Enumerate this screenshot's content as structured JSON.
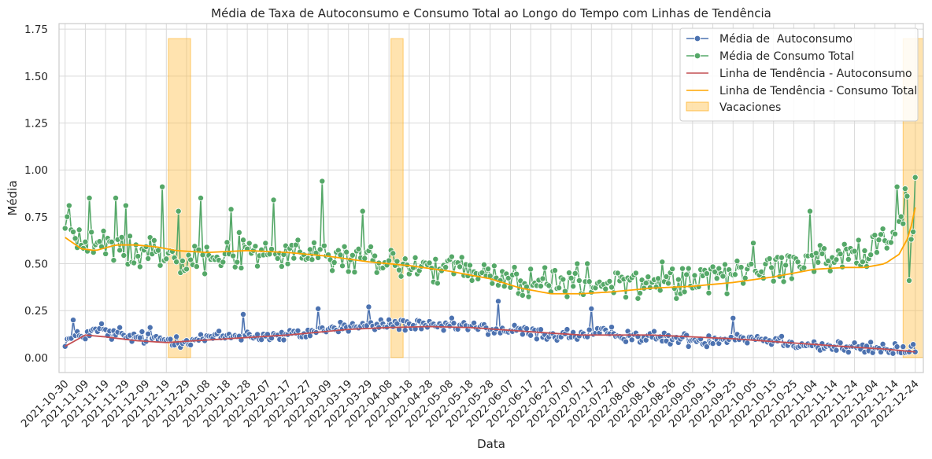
{
  "chart_data": {
    "type": "line",
    "title": "Média de Taxa de Autoconsumo e Consumo Total ao Longo do Tempo com Linhas de Tendência",
    "xlabel": "Data",
    "ylabel": "Média",
    "x_range": [
      "2021-10-27",
      "2022-12-28"
    ],
    "ylim": [
      -0.08,
      1.78
    ],
    "y_ticks": [
      0.0,
      0.25,
      0.5,
      0.75,
      1.0,
      1.25,
      1.5,
      1.75
    ],
    "y_tick_labels": [
      "0.00",
      "0.25",
      "0.50",
      "0.75",
      "1.00",
      "1.25",
      "1.50",
      "1.75"
    ],
    "x_tick_labels": [
      "2021-10-30",
      "2021-11-09",
      "2021-11-19",
      "2021-11-29",
      "2021-12-09",
      "2021-12-19",
      "2021-12-29",
      "2022-01-08",
      "2022-01-18",
      "2022-01-28",
      "2022-02-07",
      "2022-02-17",
      "2022-02-27",
      "2022-03-09",
      "2022-03-19",
      "2022-03-29",
      "2022-04-08",
      "2022-04-18",
      "2022-04-28",
      "2022-05-08",
      "2022-05-18",
      "2022-05-28",
      "2022-06-07",
      "2022-06-17",
      "2022-06-27",
      "2022-07-07",
      "2022-07-17",
      "2022-07-27",
      "2022-08-06",
      "2022-08-16",
      "2022-08-26",
      "2022-09-05",
      "2022-09-15",
      "2022-09-25",
      "2022-10-05",
      "2022-10-15",
      "2022-10-25",
      "2022-11-04",
      "2022-11-14",
      "2022-11-24",
      "2022-12-04",
      "2022-12-14",
      "2022-12-24"
    ],
    "grid": true,
    "legend_position": "top-right",
    "start_date": "2021-10-30",
    "series": [
      {
        "name": "Média de  Autoconsumo",
        "color": "#4c72b0",
        "marker": "circle",
        "anchors": [
          [
            0,
            0.09
          ],
          [
            15,
            0.14
          ],
          [
            30,
            0.11
          ],
          [
            45,
            0.1
          ],
          [
            60,
            0.09
          ],
          [
            75,
            0.11
          ],
          [
            90,
            0.12
          ],
          [
            105,
            0.11
          ],
          [
            120,
            0.13
          ],
          [
            135,
            0.16
          ],
          [
            150,
            0.17
          ],
          [
            165,
            0.18
          ],
          [
            180,
            0.16
          ],
          [
            195,
            0.17
          ],
          [
            210,
            0.15
          ],
          [
            225,
            0.14
          ],
          [
            240,
            0.12
          ],
          [
            255,
            0.12
          ],
          [
            270,
            0.13
          ],
          [
            285,
            0.11
          ],
          [
            300,
            0.1
          ],
          [
            315,
            0.09
          ],
          [
            330,
            0.11
          ],
          [
            345,
            0.1
          ],
          [
            360,
            0.08
          ],
          [
            375,
            0.06
          ],
          [
            390,
            0.05
          ],
          [
            420,
            0.04
          ]
        ],
        "amplitude": 0.05,
        "peaks": [
          [
            4,
            0.2
          ],
          [
            18,
            0.18
          ],
          [
            27,
            0.16
          ],
          [
            42,
            0.16
          ],
          [
            88,
            0.23
          ],
          [
            125,
            0.26
          ],
          [
            150,
            0.27
          ],
          [
            214,
            0.3
          ],
          [
            260,
            0.26
          ],
          [
            330,
            0.21
          ]
        ],
        "end_values": [
          0.03,
          0.06,
          0.07,
          0.03
        ]
      },
      {
        "name": "Média de Consumo Total",
        "color": "#55a868",
        "marker": "circle",
        "anchors": [
          [
            0,
            0.7
          ],
          [
            10,
            0.6
          ],
          [
            30,
            0.58
          ],
          [
            50,
            0.56
          ],
          [
            70,
            0.54
          ],
          [
            90,
            0.56
          ],
          [
            110,
            0.55
          ],
          [
            130,
            0.54
          ],
          [
            150,
            0.52
          ],
          [
            170,
            0.49
          ],
          [
            190,
            0.47
          ],
          [
            210,
            0.43
          ],
          [
            230,
            0.4
          ],
          [
            250,
            0.39
          ],
          [
            270,
            0.39
          ],
          [
            290,
            0.4
          ],
          [
            310,
            0.42
          ],
          [
            330,
            0.45
          ],
          [
            350,
            0.48
          ],
          [
            370,
            0.52
          ],
          [
            390,
            0.56
          ],
          [
            410,
            0.65
          ],
          [
            420,
            0.9
          ]
        ],
        "amplitude": 0.13,
        "peaks": [
          [
            2,
            0.81
          ],
          [
            12,
            0.85
          ],
          [
            25,
            0.85
          ],
          [
            30,
            0.81
          ],
          [
            48,
            0.91
          ],
          [
            56,
            0.78
          ],
          [
            67,
            0.85
          ],
          [
            82,
            0.79
          ],
          [
            103,
            0.84
          ],
          [
            127,
            0.94
          ],
          [
            147,
            0.78
          ],
          [
            253,
            0.5
          ],
          [
            340,
            0.61
          ],
          [
            368,
            0.78
          ],
          [
            411,
            0.91
          ]
        ],
        "end_values": [
          0.9,
          0.86,
          0.41,
          0.63,
          0.67,
          0.96
        ]
      },
      {
        "name": "Linha de Tendência - Autoconsumo",
        "color": "#c44e52",
        "marker": "none",
        "points": [
          [
            0,
            0.06
          ],
          [
            10,
            0.12
          ],
          [
            20,
            0.11
          ],
          [
            35,
            0.09
          ],
          [
            50,
            0.08
          ],
          [
            65,
            0.09
          ],
          [
            80,
            0.1
          ],
          [
            95,
            0.11
          ],
          [
            110,
            0.12
          ],
          [
            125,
            0.135
          ],
          [
            140,
            0.15
          ],
          [
            160,
            0.16
          ],
          [
            180,
            0.165
          ],
          [
            200,
            0.16
          ],
          [
            220,
            0.145
          ],
          [
            240,
            0.13
          ],
          [
            255,
            0.12
          ],
          [
            270,
            0.12
          ],
          [
            290,
            0.12
          ],
          [
            310,
            0.11
          ],
          [
            330,
            0.1
          ],
          [
            350,
            0.085
          ],
          [
            370,
            0.07
          ],
          [
            390,
            0.055
          ],
          [
            405,
            0.045
          ],
          [
            420,
            0.03
          ]
        ]
      },
      {
        "name": "Linha de Tendência - Consumo Total",
        "color": "#ffa500",
        "marker": "none",
        "points": [
          [
            0,
            0.64
          ],
          [
            8,
            0.58
          ],
          [
            15,
            0.57
          ],
          [
            25,
            0.6
          ],
          [
            35,
            0.6
          ],
          [
            45,
            0.59
          ],
          [
            55,
            0.57
          ],
          [
            70,
            0.56
          ],
          [
            90,
            0.57
          ],
          [
            110,
            0.56
          ],
          [
            130,
            0.54
          ],
          [
            150,
            0.51
          ],
          [
            170,
            0.49
          ],
          [
            190,
            0.46
          ],
          [
            210,
            0.42
          ],
          [
            225,
            0.37
          ],
          [
            240,
            0.34
          ],
          [
            255,
            0.34
          ],
          [
            270,
            0.35
          ],
          [
            290,
            0.37
          ],
          [
            310,
            0.38
          ],
          [
            330,
            0.4
          ],
          [
            350,
            0.43
          ],
          [
            370,
            0.47
          ],
          [
            385,
            0.48
          ],
          [
            395,
            0.48
          ],
          [
            405,
            0.5
          ],
          [
            412,
            0.55
          ],
          [
            417,
            0.65
          ],
          [
            420,
            0.8
          ]
        ]
      }
    ],
    "vacations": {
      "name": "Vacaciones",
      "color": "#ffc04d",
      "height": 1.7,
      "spans": [
        [
          "2021-12-20",
          "2021-12-31"
        ],
        [
          "2022-04-09",
          "2022-04-15"
        ],
        [
          "2022-12-18",
          "2022-12-28"
        ]
      ]
    }
  }
}
